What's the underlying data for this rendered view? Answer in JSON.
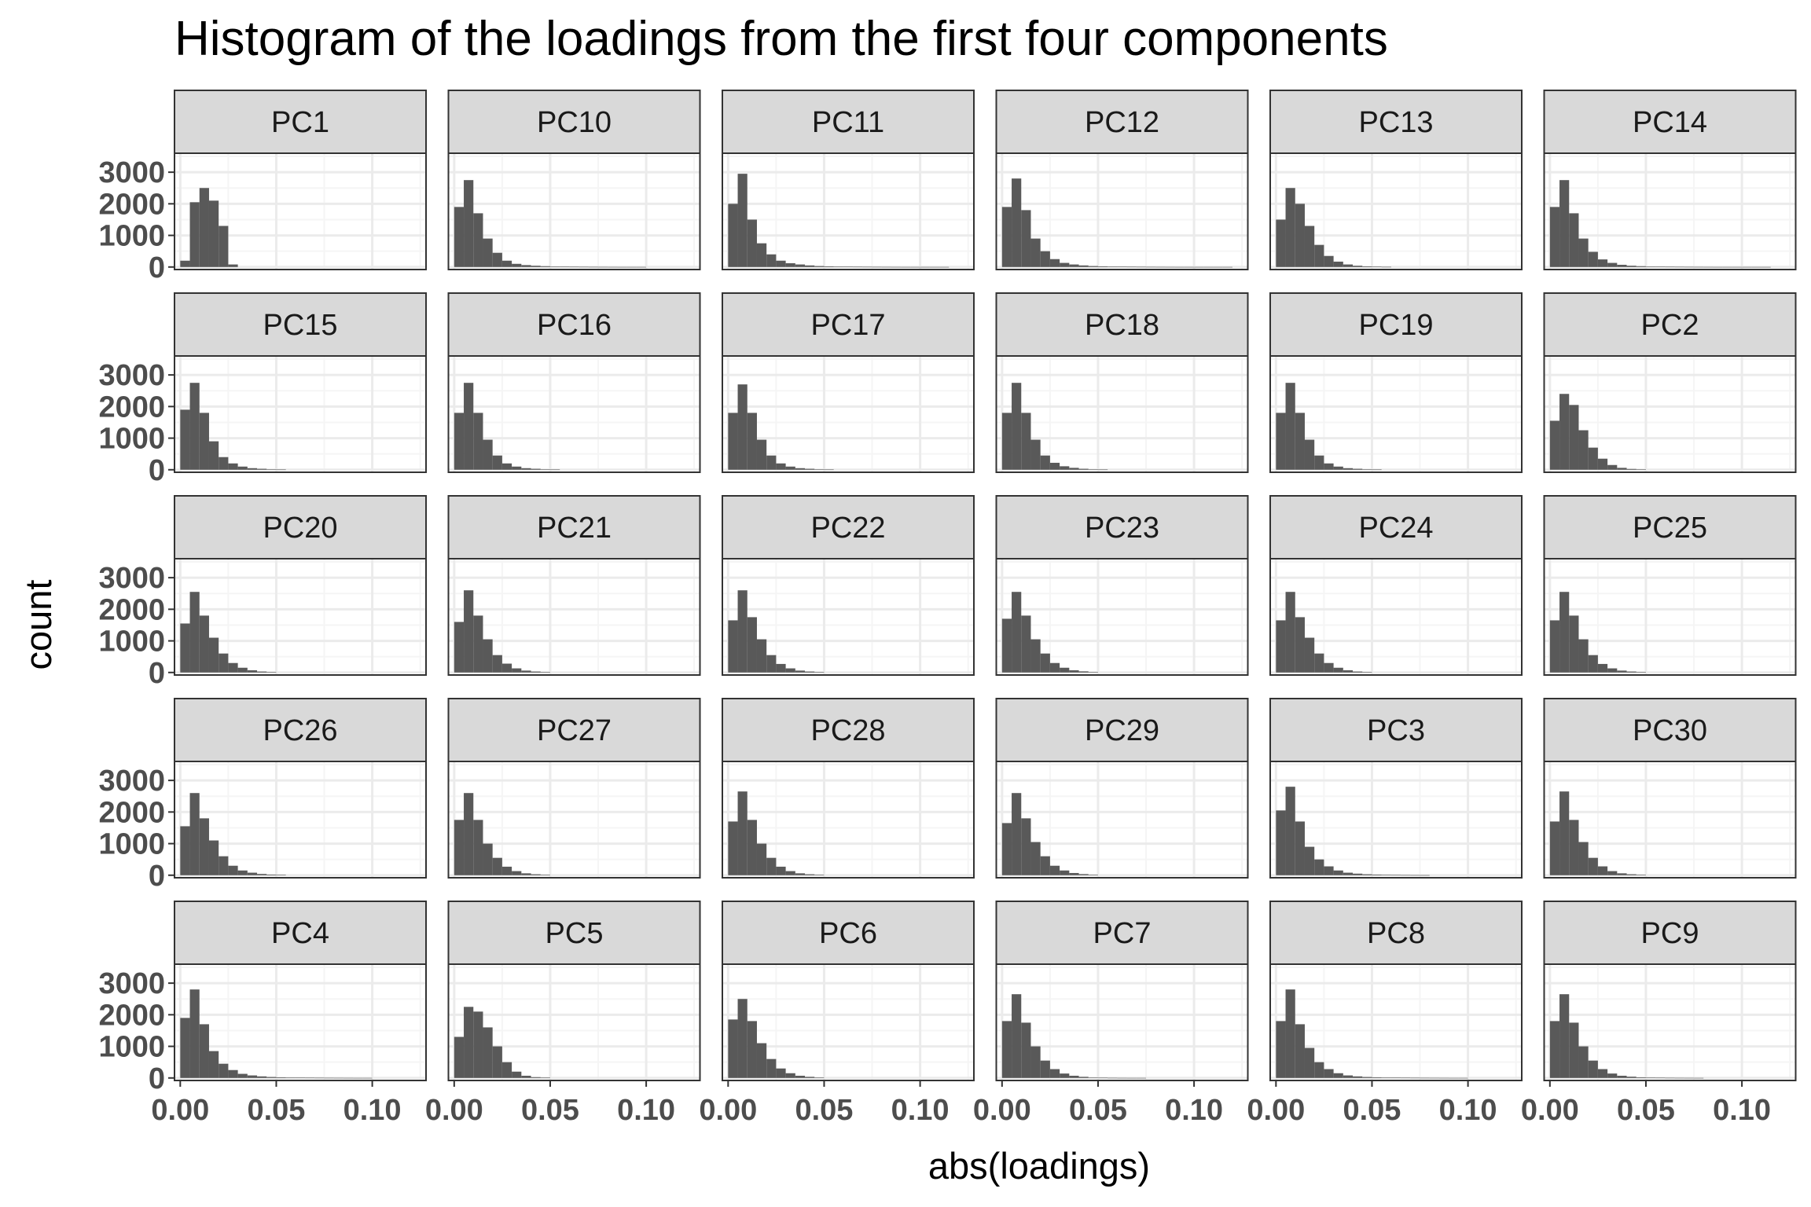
{
  "chart_data": {
    "type": "histogram",
    "title": "Histogram of the loadings from the first four components",
    "xlabel": "abs(loadings)",
    "ylabel": "count",
    "xlim": [
      -0.003,
      0.128
    ],
    "ylim": [
      -80,
      3600
    ],
    "x_ticks": [
      0.0,
      0.05,
      0.1
    ],
    "x_tick_labels": [
      "0.00",
      "0.05",
      "0.10"
    ],
    "y_ticks": [
      0,
      1000,
      2000,
      3000
    ],
    "y_tick_labels": [
      "0",
      "1000",
      "2000",
      "3000"
    ],
    "bin_width": 0.005,
    "bin_start": 0.0,
    "grid": true,
    "facets": [
      {
        "name": "PC1",
        "counts": [
          200,
          2050,
          2500,
          2100,
          1300,
          80
        ]
      },
      {
        "name": "PC10",
        "counts": [
          1900,
          2750,
          1700,
          900,
          450,
          200,
          100,
          60,
          40,
          25,
          15,
          10,
          8,
          6,
          4,
          3,
          2,
          1,
          1,
          1
        ]
      },
      {
        "name": "PC11",
        "counts": [
          2000,
          2950,
          1500,
          750,
          400,
          200,
          120,
          80,
          50,
          30,
          20,
          15,
          10,
          8,
          6,
          4,
          3,
          2,
          1,
          1,
          1,
          1,
          1
        ]
      },
      {
        "name": "PC12",
        "counts": [
          1900,
          2800,
          1800,
          900,
          500,
          250,
          130,
          80,
          50,
          30,
          20,
          15,
          10,
          8,
          6,
          4,
          3,
          2,
          1,
          1,
          1,
          1,
          1,
          1
        ]
      },
      {
        "name": "PC13",
        "counts": [
          1500,
          2500,
          2000,
          1300,
          700,
          350,
          170,
          80,
          40,
          20,
          10,
          5
        ]
      },
      {
        "name": "PC14",
        "counts": [
          1900,
          2750,
          1700,
          900,
          480,
          240,
          130,
          70,
          40,
          25,
          15,
          10,
          8,
          6,
          4,
          3,
          2,
          1,
          1,
          1,
          1,
          1,
          1
        ]
      },
      {
        "name": "PC15",
        "counts": [
          1900,
          2750,
          1800,
          900,
          400,
          200,
          100,
          50,
          30,
          15,
          8
        ]
      },
      {
        "name": "PC16",
        "counts": [
          1800,
          2750,
          1800,
          950,
          450,
          200,
          100,
          50,
          30,
          15,
          8
        ]
      },
      {
        "name": "PC17",
        "counts": [
          1800,
          2700,
          1800,
          950,
          450,
          200,
          100,
          50,
          30,
          15,
          8
        ]
      },
      {
        "name": "PC18",
        "counts": [
          1800,
          2750,
          1800,
          950,
          450,
          220,
          110,
          60,
          30,
          15,
          8
        ]
      },
      {
        "name": "PC19",
        "counts": [
          1800,
          2750,
          1800,
          950,
          450,
          200,
          100,
          50,
          30,
          15,
          8
        ]
      },
      {
        "name": "PC2",
        "counts": [
          1550,
          2400,
          2050,
          1250,
          700,
          350,
          150,
          60,
          25,
          10
        ]
      },
      {
        "name": "PC20",
        "counts": [
          1550,
          2550,
          1800,
          1100,
          600,
          300,
          150,
          70,
          30,
          15
        ]
      },
      {
        "name": "PC21",
        "counts": [
          1600,
          2600,
          1800,
          1050,
          550,
          280,
          130,
          60,
          30,
          15
        ]
      },
      {
        "name": "PC22",
        "counts": [
          1650,
          2600,
          1750,
          1050,
          550,
          270,
          130,
          60,
          30,
          15
        ]
      },
      {
        "name": "PC23",
        "counts": [
          1700,
          2550,
          1800,
          1050,
          600,
          300,
          150,
          70,
          35,
          15
        ]
      },
      {
        "name": "PC24",
        "counts": [
          1650,
          2550,
          1750,
          1100,
          600,
          300,
          150,
          70,
          30,
          15
        ]
      },
      {
        "name": "PC25",
        "counts": [
          1650,
          2550,
          1800,
          1050,
          550,
          270,
          130,
          60,
          30,
          15
        ]
      },
      {
        "name": "PC26",
        "counts": [
          1550,
          2600,
          1800,
          1100,
          600,
          300,
          150,
          80,
          40,
          20,
          10
        ]
      },
      {
        "name": "PC27",
        "counts": [
          1750,
          2600,
          1750,
          1000,
          550,
          270,
          130,
          60,
          30,
          15
        ]
      },
      {
        "name": "PC28",
        "counts": [
          1700,
          2650,
          1750,
          1000,
          550,
          270,
          130,
          60,
          30,
          15
        ]
      },
      {
        "name": "PC29",
        "counts": [
          1650,
          2600,
          1800,
          1050,
          600,
          300,
          150,
          70,
          35,
          15
        ]
      },
      {
        "name": "PC3",
        "counts": [
          2050,
          2800,
          1700,
          900,
          500,
          280,
          150,
          80,
          50,
          30,
          20,
          12,
          8,
          5,
          3,
          2
        ]
      },
      {
        "name": "PC30",
        "counts": [
          1700,
          2650,
          1750,
          1050,
          550,
          280,
          130,
          60,
          30,
          15
        ]
      },
      {
        "name": "PC4",
        "counts": [
          1900,
          2800,
          1700,
          850,
          450,
          250,
          130,
          80,
          50,
          30,
          20,
          15,
          10,
          8,
          6,
          4,
          3,
          2,
          1,
          1
        ]
      },
      {
        "name": "PC5",
        "counts": [
          1300,
          2250,
          2100,
          1600,
          1000,
          500,
          200,
          70,
          25,
          10
        ]
      },
      {
        "name": "PC6",
        "counts": [
          1850,
          2500,
          1800,
          1100,
          600,
          300,
          150,
          70,
          35,
          15
        ]
      },
      {
        "name": "PC7",
        "counts": [
          1800,
          2650,
          1750,
          1000,
          550,
          280,
          140,
          70,
          35,
          15,
          8,
          4,
          2,
          1,
          1
        ]
      },
      {
        "name": "PC8",
        "counts": [
          1800,
          2800,
          1700,
          950,
          500,
          280,
          150,
          80,
          50,
          30,
          20,
          15,
          10,
          8,
          6,
          4,
          3,
          2,
          1,
          1
        ]
      },
      {
        "name": "PC9",
        "counts": [
          1800,
          2650,
          1750,
          1000,
          550,
          280,
          140,
          70,
          40,
          20,
          12,
          8,
          5,
          3,
          2,
          1
        ]
      }
    ],
    "colors": {
      "bar": "#595959",
      "panel_border": "#333333",
      "strip_fill": "#d9d9d9",
      "grid_major": "#ebebeb",
      "grid_minor": "#f5f5f5",
      "tick_text": "#4d4d4d"
    }
  }
}
